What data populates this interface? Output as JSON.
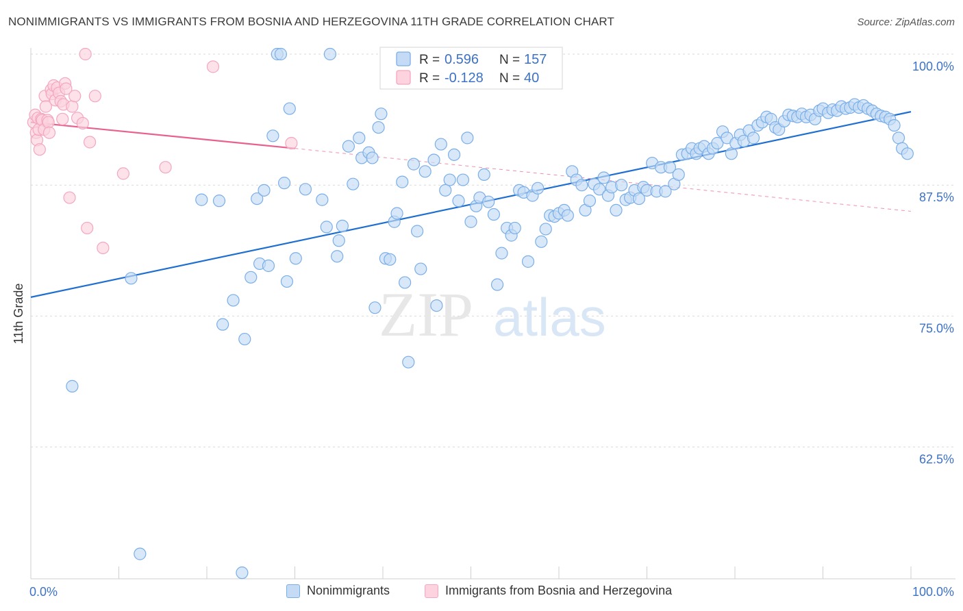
{
  "title": "NONIMMIGRANTS VS IMMIGRANTS FROM BOSNIA AND HERZEGOVINA 11TH GRADE CORRELATION CHART",
  "source": "Source: ZipAtlas.com",
  "colors": {
    "blue": "#7aaee8",
    "blue_fill": "#c5dbf5",
    "blue_line": "#1f6fd1",
    "pink": "#f4a6bf",
    "pink_fill": "#fcd3df",
    "pink_line": "#e8618c",
    "axis_label": "#3c72c6"
  },
  "chart_data": {
    "type": "scatter",
    "title": "NONIMMIGRANTS VS IMMIGRANTS FROM BOSNIA AND HERZEGOVINA 11TH GRADE CORRELATION CHART",
    "xlabel": "",
    "ylabel": "11th Grade",
    "xlim": [
      0,
      100
    ],
    "ylim": [
      51.5,
      102
    ],
    "x_tick_labels": [
      "0.0%",
      "100.0%"
    ],
    "y_ticks": [
      100,
      87.5,
      75,
      62.5
    ],
    "y_tick_labels": [
      "100.0%",
      "87.5%",
      "75.0%",
      "62.5%"
    ],
    "legend_stats": [
      {
        "r_label": "R =",
        "r_value": "0.596",
        "n_label": "N =",
        "n_value": "157"
      },
      {
        "r_label": "R =",
        "r_value": "-0.128",
        "n_label": "N =",
        "n_value": "40"
      }
    ],
    "series": [
      {
        "name": "Nonimmigrants",
        "trend": {
          "x0": 0,
          "y0": 76.8,
          "x1": 100,
          "y1": 94.5,
          "dashed_to": null
        },
        "points": [
          [
            4.7,
            68.3
          ],
          [
            11.4,
            78.6
          ],
          [
            12.4,
            52.3
          ],
          [
            19.4,
            86.1
          ],
          [
            21.4,
            86.0
          ],
          [
            21.8,
            74.2
          ],
          [
            23.0,
            76.5
          ],
          [
            24.0,
            50.5
          ],
          [
            24.3,
            72.8
          ],
          [
            25.0,
            78.7
          ],
          [
            25.7,
            86.2
          ],
          [
            26.0,
            80.0
          ],
          [
            26.5,
            87.0
          ],
          [
            27.0,
            79.8
          ],
          [
            27.5,
            92.2
          ],
          [
            28.0,
            100
          ],
          [
            28.4,
            100
          ],
          [
            28.8,
            87.7
          ],
          [
            29.1,
            78.3
          ],
          [
            29.4,
            94.8
          ],
          [
            30.1,
            80.5
          ],
          [
            31.2,
            87.1
          ],
          [
            33.1,
            86.1
          ],
          [
            33.6,
            83.5
          ],
          [
            34.0,
            100
          ],
          [
            34.8,
            80.7
          ],
          [
            35.0,
            82.2
          ],
          [
            35.4,
            83.6
          ],
          [
            36.1,
            91.2
          ],
          [
            36.6,
            87.6
          ],
          [
            37.3,
            92.0
          ],
          [
            37.6,
            90.1
          ],
          [
            38.4,
            90.6
          ],
          [
            38.8,
            90.1
          ],
          [
            39.1,
            75.8
          ],
          [
            39.5,
            93.0
          ],
          [
            39.8,
            94.3
          ],
          [
            40.3,
            80.5
          ],
          [
            40.8,
            80.4
          ],
          [
            41.3,
            84.0
          ],
          [
            41.6,
            84.8
          ],
          [
            42.2,
            87.8
          ],
          [
            42.5,
            78.2
          ],
          [
            42.9,
            70.6
          ],
          [
            43.5,
            89.5
          ],
          [
            43.9,
            83.1
          ],
          [
            44.3,
            79.5
          ],
          [
            44.8,
            88.8
          ],
          [
            45.8,
            89.9
          ],
          [
            46.1,
            76.0
          ],
          [
            46.6,
            91.4
          ],
          [
            47.1,
            87.0
          ],
          [
            47.6,
            88.0
          ],
          [
            48.1,
            90.4
          ],
          [
            48.6,
            86.0
          ],
          [
            49.1,
            88.0
          ],
          [
            49.6,
            92.0
          ],
          [
            50.0,
            84.0
          ],
          [
            50.6,
            85.5
          ],
          [
            51.0,
            86.3
          ],
          [
            51.5,
            88.5
          ],
          [
            52.0,
            85.9
          ],
          [
            52.6,
            84.7
          ],
          [
            53.0,
            78.0
          ],
          [
            53.5,
            81.0
          ],
          [
            54.1,
            83.4
          ],
          [
            54.6,
            82.7
          ],
          [
            55.0,
            83.4
          ],
          [
            55.5,
            87.0
          ],
          [
            56.0,
            86.8
          ],
          [
            56.5,
            80.2
          ],
          [
            57.0,
            86.5
          ],
          [
            57.6,
            87.2
          ],
          [
            58.0,
            82.1
          ],
          [
            58.5,
            83.3
          ],
          [
            59.0,
            84.6
          ],
          [
            59.5,
            84.5
          ],
          [
            60.0,
            84.8
          ],
          [
            60.6,
            85.1
          ],
          [
            61.0,
            84.6
          ],
          [
            61.5,
            88.8
          ],
          [
            62.0,
            88.0
          ],
          [
            62.6,
            87.5
          ],
          [
            63.0,
            85.1
          ],
          [
            63.5,
            86.0
          ],
          [
            64.0,
            87.6
          ],
          [
            64.6,
            87.1
          ],
          [
            65.1,
            88.2
          ],
          [
            65.6,
            86.5
          ],
          [
            66.0,
            87.3
          ],
          [
            66.5,
            85.1
          ],
          [
            67.1,
            87.5
          ],
          [
            67.6,
            86.1
          ],
          [
            68.1,
            86.3
          ],
          [
            68.6,
            87.0
          ],
          [
            69.1,
            86.2
          ],
          [
            69.6,
            87.3
          ],
          [
            70.0,
            87.0
          ],
          [
            70.6,
            89.6
          ],
          [
            71.1,
            86.9
          ],
          [
            71.6,
            89.2
          ],
          [
            72.1,
            86.9
          ],
          [
            72.6,
            89.2
          ],
          [
            73.1,
            87.6
          ],
          [
            73.6,
            88.5
          ],
          [
            74.0,
            90.4
          ],
          [
            74.6,
            90.5
          ],
          [
            75.1,
            91.0
          ],
          [
            75.6,
            90.5
          ],
          [
            76.0,
            91.0
          ],
          [
            76.5,
            91.2
          ],
          [
            77.0,
            90.5
          ],
          [
            77.5,
            91.0
          ],
          [
            78.0,
            91.5
          ],
          [
            78.6,
            92.6
          ],
          [
            79.1,
            92.0
          ],
          [
            79.6,
            90.5
          ],
          [
            80.1,
            91.5
          ],
          [
            80.6,
            92.3
          ],
          [
            81.0,
            91.7
          ],
          [
            81.6,
            92.7
          ],
          [
            82.1,
            92.0
          ],
          [
            82.6,
            93.2
          ],
          [
            83.1,
            93.5
          ],
          [
            83.6,
            94.0
          ],
          [
            84.1,
            93.8
          ],
          [
            84.6,
            93.0
          ],
          [
            85.0,
            92.8
          ],
          [
            85.6,
            93.6
          ],
          [
            86.1,
            94.2
          ],
          [
            86.6,
            94.1
          ],
          [
            87.1,
            94.0
          ],
          [
            87.6,
            94.3
          ],
          [
            88.1,
            94.0
          ],
          [
            88.6,
            94.2
          ],
          [
            89.1,
            93.8
          ],
          [
            89.6,
            94.6
          ],
          [
            90.0,
            94.8
          ],
          [
            90.6,
            94.4
          ],
          [
            91.1,
            94.7
          ],
          [
            91.6,
            94.6
          ],
          [
            92.1,
            95.0
          ],
          [
            92.6,
            94.8
          ],
          [
            93.1,
            94.9
          ],
          [
            93.6,
            95.2
          ],
          [
            94.1,
            94.9
          ],
          [
            94.6,
            95.1
          ],
          [
            95.1,
            94.8
          ],
          [
            95.6,
            94.6
          ],
          [
            96.1,
            94.3
          ],
          [
            96.6,
            94.1
          ],
          [
            97.1,
            94.0
          ],
          [
            97.6,
            93.8
          ],
          [
            98.1,
            93.2
          ],
          [
            98.6,
            92.0
          ],
          [
            99.0,
            91.0
          ],
          [
            99.6,
            90.5
          ]
        ]
      },
      {
        "name": "Immigrants from Bosnia and Herzegovina",
        "trend": {
          "x0": 0,
          "y0": 93.5,
          "x1": 30,
          "y1": 91.0,
          "dashed_to": [
            100,
            85.0
          ]
        },
        "points": [
          [
            0.3,
            93.5
          ],
          [
            0.5,
            94.2
          ],
          [
            0.6,
            92.5
          ],
          [
            0.7,
            91.8
          ],
          [
            0.8,
            93.9
          ],
          [
            0.9,
            92.8
          ],
          [
            1.0,
            90.9
          ],
          [
            1.2,
            93.8
          ],
          [
            1.3,
            93.7
          ],
          [
            1.5,
            92.8
          ],
          [
            1.6,
            96.0
          ],
          [
            1.7,
            95.0
          ],
          [
            1.9,
            93.7
          ],
          [
            2.0,
            93.5
          ],
          [
            2.1,
            92.5
          ],
          [
            2.3,
            96.6
          ],
          [
            2.4,
            96.2
          ],
          [
            2.6,
            97.0
          ],
          [
            2.8,
            95.6
          ],
          [
            3.0,
            96.8
          ],
          [
            3.2,
            96.3
          ],
          [
            3.4,
            95.5
          ],
          [
            3.6,
            93.8
          ],
          [
            3.7,
            95.2
          ],
          [
            3.9,
            97.2
          ],
          [
            4.0,
            96.7
          ],
          [
            4.4,
            86.3
          ],
          [
            4.7,
            95.0
          ],
          [
            5.0,
            96.0
          ],
          [
            5.3,
            93.9
          ],
          [
            5.9,
            93.4
          ],
          [
            6.2,
            100
          ],
          [
            6.4,
            83.4
          ],
          [
            6.7,
            91.6
          ],
          [
            7.3,
            96.0
          ],
          [
            8.2,
            81.5
          ],
          [
            10.5,
            88.6
          ],
          [
            15.3,
            89.2
          ],
          [
            20.7,
            98.8
          ],
          [
            29.6,
            91.5
          ]
        ]
      }
    ]
  },
  "bottom_legend": [
    "Nonimmigrants",
    "Immigrants from Bosnia and Herzegovina"
  ],
  "watermark": {
    "zip": "ZIP",
    "atlas": "atlas"
  }
}
